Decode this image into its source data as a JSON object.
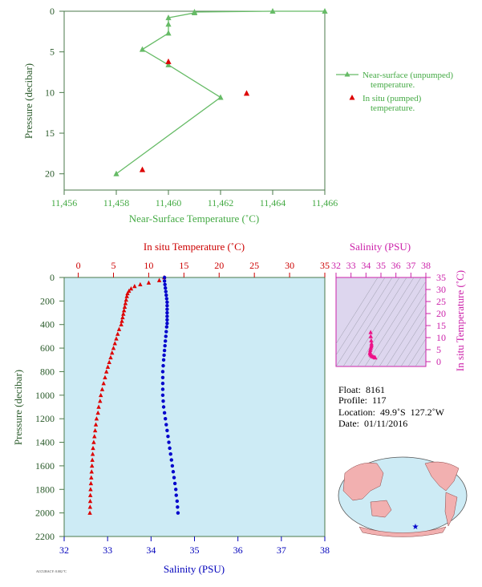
{
  "chart_data": [
    {
      "type": "line",
      "xlabel": "Near-Surface Temperature (˚C)",
      "ylabel": "Pressure (decibar)",
      "xlim": [
        11.456,
        11.466
      ],
      "ylim": [
        22,
        0
      ],
      "x_ticks": [
        "11,456",
        "11,458",
        "11,460",
        "11,462",
        "11,464",
        "11,466"
      ],
      "y_ticks": [
        "0",
        "5",
        "10",
        "15",
        "20"
      ],
      "series": [
        {
          "name": "Near-surface (unpumped) temperature.",
          "marker": "triangle",
          "color": "#66bb66",
          "points": [
            [
              11.466,
              0.0
            ],
            [
              11.464,
              0.0
            ],
            [
              11.461,
              0.1
            ],
            [
              11.461,
              0.2
            ],
            [
              11.46,
              0.8
            ],
            [
              11.46,
              1.6
            ],
            [
              11.46,
              2.7
            ],
            [
              11.459,
              4.7
            ],
            [
              11.46,
              6.6
            ],
            [
              11.462,
              10.6
            ],
            [
              11.458,
              20.0
            ]
          ]
        },
        {
          "name": "In situ (pumped) temperature.",
          "marker": "triangle",
          "color": "#dd0000",
          "points": [
            [
              11.46,
              6.2
            ],
            [
              11.463,
              10.1
            ],
            [
              11.459,
              19.5
            ]
          ]
        }
      ]
    },
    {
      "type": "scatter",
      "ylabel": "Pressure (decibar)",
      "ylim": [
        2200,
        0
      ],
      "y_ticks": [
        "0",
        "200",
        "400",
        "600",
        "800",
        "1000",
        "1200",
        "1400",
        "1600",
        "1800",
        "2000",
        "2200"
      ],
      "temp_axis": {
        "label": "In situ Temperature (˚C)",
        "lim": [
          -2,
          35
        ],
        "ticks": [
          "0",
          "5",
          "10",
          "15",
          "20",
          "25",
          "30",
          "35"
        ]
      },
      "sal_axis": {
        "label": "Salinity (PSU)",
        "lim": [
          32,
          38
        ],
        "ticks": [
          "32",
          "33",
          "34",
          "35",
          "36",
          "37",
          "38"
        ]
      },
      "temperature": {
        "color": "#dd0000",
        "points": [
          [
            12.2,
            0
          ],
          [
            11.5,
            25
          ],
          [
            10.0,
            45
          ],
          [
            8.8,
            60
          ],
          [
            8.0,
            75
          ],
          [
            7.5,
            95
          ],
          [
            7.2,
            115
          ],
          [
            7.0,
            135
          ],
          [
            6.9,
            160
          ],
          [
            6.8,
            190
          ],
          [
            6.7,
            220
          ],
          [
            6.6,
            250
          ],
          [
            6.5,
            280
          ],
          [
            6.4,
            310
          ],
          [
            6.3,
            340
          ],
          [
            6.2,
            370
          ],
          [
            6.1,
            400
          ],
          [
            5.8,
            440
          ],
          [
            5.6,
            480
          ],
          [
            5.4,
            520
          ],
          [
            5.2,
            560
          ],
          [
            5.0,
            600
          ],
          [
            4.8,
            640
          ],
          [
            4.6,
            680
          ],
          [
            4.4,
            720
          ],
          [
            4.2,
            760
          ],
          [
            4.0,
            800
          ],
          [
            3.8,
            850
          ],
          [
            3.6,
            900
          ],
          [
            3.4,
            950
          ],
          [
            3.2,
            1000
          ],
          [
            3.1,
            1050
          ],
          [
            2.9,
            1100
          ],
          [
            2.8,
            1150
          ],
          [
            2.6,
            1200
          ],
          [
            2.5,
            1250
          ],
          [
            2.4,
            1300
          ],
          [
            2.3,
            1350
          ],
          [
            2.2,
            1400
          ],
          [
            2.1,
            1450
          ],
          [
            2.05,
            1500
          ],
          [
            2.0,
            1550
          ],
          [
            1.95,
            1600
          ],
          [
            1.9,
            1650
          ],
          [
            1.85,
            1700
          ],
          [
            1.8,
            1750
          ],
          [
            1.75,
            1800
          ],
          [
            1.72,
            1850
          ],
          [
            1.7,
            1900
          ],
          [
            1.68,
            1950
          ],
          [
            1.65,
            2000
          ]
        ]
      },
      "salinity": {
        "color": "#0000cc",
        "points": [
          [
            34.31,
            0
          ],
          [
            34.31,
            30
          ],
          [
            34.32,
            60
          ],
          [
            34.33,
            90
          ],
          [
            34.34,
            120
          ],
          [
            34.35,
            150
          ],
          [
            34.36,
            180
          ],
          [
            34.37,
            210
          ],
          [
            34.37,
            240
          ],
          [
            34.37,
            270
          ],
          [
            34.37,
            300
          ],
          [
            34.37,
            330
          ],
          [
            34.37,
            360
          ],
          [
            34.37,
            390
          ],
          [
            34.36,
            420
          ],
          [
            34.35,
            460
          ],
          [
            34.34,
            500
          ],
          [
            34.33,
            540
          ],
          [
            34.32,
            580
          ],
          [
            34.31,
            620
          ],
          [
            34.3,
            660
          ],
          [
            34.29,
            700
          ],
          [
            34.28,
            750
          ],
          [
            34.27,
            800
          ],
          [
            34.27,
            850
          ],
          [
            34.27,
            900
          ],
          [
            34.27,
            950
          ],
          [
            34.27,
            1000
          ],
          [
            34.28,
            1050
          ],
          [
            34.29,
            1100
          ],
          [
            34.31,
            1150
          ],
          [
            34.33,
            1200
          ],
          [
            34.35,
            1250
          ],
          [
            34.37,
            1300
          ],
          [
            34.39,
            1350
          ],
          [
            34.41,
            1400
          ],
          [
            34.43,
            1450
          ],
          [
            34.45,
            1500
          ],
          [
            34.47,
            1550
          ],
          [
            34.49,
            1600
          ],
          [
            34.51,
            1650
          ],
          [
            34.53,
            1700
          ],
          [
            34.55,
            1750
          ],
          [
            34.57,
            1800
          ],
          [
            34.58,
            1850
          ],
          [
            34.6,
            1900
          ],
          [
            34.61,
            1950
          ],
          [
            34.62,
            2000
          ]
        ]
      }
    },
    {
      "type": "scatter",
      "xlabel": "Salinity (PSU)",
      "ylabel": "In situ Temperature (˚C)",
      "xlim": [
        32,
        38
      ],
      "ylim": [
        -2,
        35
      ],
      "x_ticks": [
        "32",
        "33",
        "34",
        "35",
        "36",
        "37",
        "38"
      ],
      "y_ticks": [
        "0",
        "5",
        "10",
        "15",
        "20",
        "25",
        "30",
        "35"
      ],
      "color": "#ee1188",
      "points": [
        [
          34.31,
          12.2
        ],
        [
          34.32,
          10.5
        ],
        [
          34.35,
          8.8
        ],
        [
          34.37,
          7.5
        ],
        [
          34.37,
          6.8
        ],
        [
          34.35,
          6.2
        ],
        [
          34.32,
          5.5
        ],
        [
          34.29,
          4.8
        ],
        [
          34.27,
          4.0
        ],
        [
          34.27,
          3.4
        ],
        [
          34.3,
          2.9
        ],
        [
          34.36,
          2.5
        ],
        [
          34.42,
          2.2
        ],
        [
          34.5,
          2.0
        ],
        [
          34.58,
          1.8
        ],
        [
          34.62,
          1.65
        ]
      ]
    }
  ],
  "info": {
    "float": "Float:  8161",
    "profile": "Profile:  117",
    "location": "Location:  49.9˚S  127.2˚W",
    "date": "Date:  01/11/2016"
  },
  "footer": "ACCURACY: 0.002 ºC"
}
